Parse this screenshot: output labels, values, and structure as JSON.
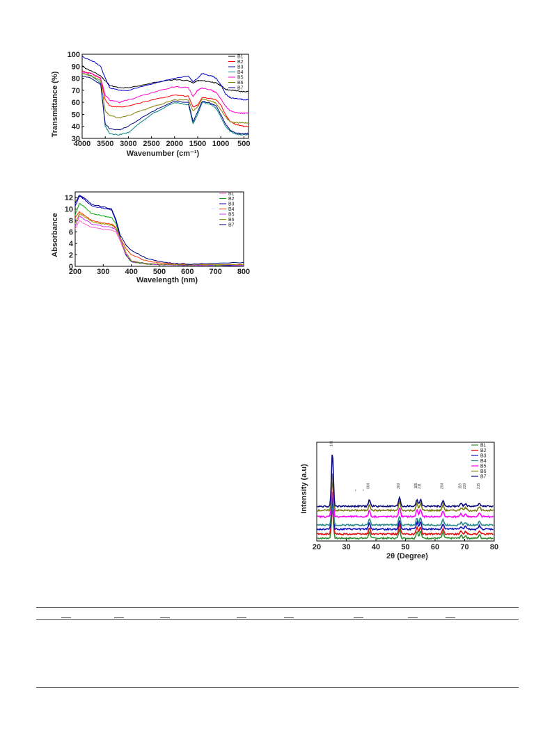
{
  "ftir": {
    "ylabel": "Transmittance (%)",
    "xlabel": "Wavenumber (cm⁻¹)",
    "legend": [
      "B1",
      "B2",
      "B3",
      "B4",
      "B5",
      "B6",
      "B7"
    ]
  },
  "uv": {
    "ylabel": "Absorbance",
    "xlabel": "Wavelength (nm)",
    "legend": [
      "B1",
      "B2",
      "B3",
      "B4",
      "B5",
      "B6",
      "B7"
    ]
  },
  "xrd": {
    "ylabel": "Intensity (a.u)",
    "xlabel": "2θ (Degree)",
    "legend": [
      "B1",
      "B2",
      "B3",
      "B4",
      "B5",
      "B6",
      "B7"
    ],
    "peak_labels": [
      "101",
      "*",
      "*",
      "004",
      "200",
      "105",
      "211",
      "204",
      "116",
      "220",
      "215"
    ]
  },
  "chart_data": [
    {
      "type": "line",
      "xlabel": "Wavenumber (cm⁻¹)",
      "ylabel": "Transmittance (%)",
      "xlim": [
        4000,
        400
      ],
      "ylim": [
        30,
        100
      ],
      "xticks": [
        4000,
        3500,
        3000,
        2500,
        2000,
        1500,
        1000,
        500
      ],
      "yticks": [
        30,
        40,
        50,
        60,
        70,
        80,
        90,
        100
      ],
      "legend_position": "top-right",
      "x": [
        4000,
        3800,
        3600,
        3500,
        3400,
        3200,
        3000,
        2500,
        2000,
        1700,
        1600,
        1500,
        1400,
        1200,
        1100,
        1000,
        900,
        800,
        700,
        600,
        500,
        400
      ],
      "series": [
        {
          "name": "B1",
          "color": "#000000",
          "values": [
            90,
            86,
            82,
            78,
            74,
            72,
            72,
            76,
            79,
            78,
            76,
            78,
            78,
            77,
            76,
            74,
            71,
            70,
            70,
            69,
            69,
            69
          ]
        },
        {
          "name": "B2",
          "color": "#ff0000",
          "values": [
            86,
            84,
            80,
            62,
            57,
            56,
            57,
            62,
            66,
            65,
            56,
            58,
            64,
            63,
            62,
            58,
            50,
            44,
            42,
            41,
            40,
            40
          ]
        },
        {
          "name": "B3",
          "color": "#0000cc",
          "values": [
            98,
            95,
            90,
            80,
            72,
            70,
            70,
            75,
            80,
            82,
            77,
            80,
            84,
            82,
            80,
            75,
            67,
            64,
            63,
            63,
            62,
            62
          ]
        },
        {
          "name": "B4",
          "color": "#008080",
          "values": [
            84,
            82,
            76,
            40,
            34,
            33,
            35,
            50,
            60,
            58,
            42,
            50,
            60,
            58,
            55,
            48,
            40,
            36,
            34,
            33,
            33,
            33
          ]
        },
        {
          "name": "B5",
          "color": "#ff00cc",
          "values": [
            85,
            84,
            80,
            66,
            62,
            60,
            62,
            68,
            73,
            72,
            65,
            70,
            72,
            70,
            68,
            63,
            57,
            53,
            52,
            51,
            51,
            51
          ]
        },
        {
          "name": "B6",
          "color": "#808000",
          "values": [
            84,
            82,
            78,
            53,
            49,
            47,
            49,
            56,
            62,
            62,
            53,
            56,
            63,
            61,
            59,
            54,
            48,
            44,
            43,
            43,
            43,
            43
          ]
        },
        {
          "name": "B7",
          "color": "#000080",
          "values": [
            82,
            80,
            75,
            42,
            38,
            37,
            40,
            52,
            61,
            60,
            44,
            52,
            61,
            59,
            57,
            50,
            42,
            37,
            35,
            34,
            34,
            34
          ]
        }
      ]
    },
    {
      "type": "line",
      "xlabel": "Wavelength (nm)",
      "ylabel": "Absorbance",
      "xlim": [
        200,
        800
      ],
      "ylim": [
        0,
        13
      ],
      "xticks": [
        200,
        300,
        400,
        500,
        600,
        700,
        800
      ],
      "yticks": [
        0,
        2,
        4,
        6,
        8,
        10,
        12
      ],
      "legend_position": "top-right",
      "x": [
        200,
        215,
        230,
        260,
        300,
        330,
        345,
        360,
        380,
        400,
        450,
        500,
        550,
        600,
        700,
        800
      ],
      "series": [
        {
          "name": "B1",
          "color": "#ff66cc",
          "values": [
            6.5,
            8.0,
            7.5,
            6.8,
            6.5,
            6.3,
            6.0,
            4.5,
            2.0,
            0.8,
            0.4,
            0.3,
            0.25,
            0.2,
            0.2,
            0.2
          ]
        },
        {
          "name": "B2",
          "color": "#00aa00",
          "values": [
            9.0,
            11.0,
            10.5,
            9.2,
            8.8,
            8.5,
            7.5,
            5.0,
            2.0,
            0.8,
            0.4,
            0.3,
            0.25,
            0.2,
            0.2,
            0.2
          ]
        },
        {
          "name": "B3",
          "color": "#0000cc",
          "values": [
            10.5,
            12.3,
            11.8,
            10.5,
            10.2,
            9.8,
            8.0,
            5.2,
            2.1,
            0.9,
            0.5,
            0.3,
            0.25,
            0.2,
            0.2,
            0.2
          ]
        },
        {
          "name": "B4",
          "color": "#ff3300",
          "values": [
            8.5,
            9.5,
            9.0,
            8.0,
            7.6,
            7.4,
            6.8,
            5.0,
            3.2,
            2.0,
            1.0,
            0.6,
            0.4,
            0.3,
            0.3,
            0.3
          ]
        },
        {
          "name": "B5",
          "color": "#cc33ff",
          "values": [
            7.0,
            8.8,
            8.3,
            7.4,
            7.0,
            6.8,
            6.4,
            4.8,
            2.2,
            0.9,
            0.5,
            0.3,
            0.25,
            0.2,
            0.2,
            0.2
          ]
        },
        {
          "name": "B6",
          "color": "#999900",
          "values": [
            7.5,
            9.2,
            8.8,
            7.8,
            7.4,
            7.2,
            6.6,
            5.0,
            2.5,
            1.0,
            0.5,
            0.35,
            0.3,
            0.3,
            0.3,
            0.3
          ]
        },
        {
          "name": "B7",
          "color": "#000080",
          "values": [
            11.0,
            12.5,
            12.0,
            10.8,
            10.4,
            10.0,
            8.2,
            5.5,
            3.8,
            2.8,
            1.5,
            0.8,
            0.5,
            0.4,
            0.5,
            0.7
          ]
        }
      ]
    },
    {
      "type": "line",
      "xlabel": "2θ (Degree)",
      "ylabel": "Intensity (a.u)",
      "xlim": [
        20,
        80
      ],
      "xticks": [
        20,
        30,
        40,
        50,
        60,
        70,
        80
      ],
      "legend_position": "top-right",
      "peaks": [
        {
          "x": 25.3,
          "label": "101"
        },
        {
          "x": 32.9,
          "label": "*"
        },
        {
          "x": 35.5,
          "label": "*"
        },
        {
          "x": 37.8,
          "label": "004"
        },
        {
          "x": 48.0,
          "label": "200"
        },
        {
          "x": 53.9,
          "label": "105"
        },
        {
          "x": 55.1,
          "label": "211"
        },
        {
          "x": 62.7,
          "label": "204"
        },
        {
          "x": 68.8,
          "label": "116"
        },
        {
          "x": 70.3,
          "label": "220"
        },
        {
          "x": 75.0,
          "label": "215"
        }
      ],
      "series": [
        {
          "name": "B1",
          "color": "#2e8b2e",
          "offset": 0
        },
        {
          "name": "B2",
          "color": "#e01010",
          "offset": 1
        },
        {
          "name": "B3",
          "color": "#1010c0",
          "offset": 2
        },
        {
          "name": "B4",
          "color": "#2a8a8a",
          "offset": 3
        },
        {
          "name": "B5",
          "color": "#ff00ff",
          "offset": 4
        },
        {
          "name": "B6",
          "color": "#7a7a10",
          "offset": 5
        },
        {
          "name": "B7",
          "color": "#0a0a7a",
          "offset": 6
        }
      ]
    }
  ]
}
